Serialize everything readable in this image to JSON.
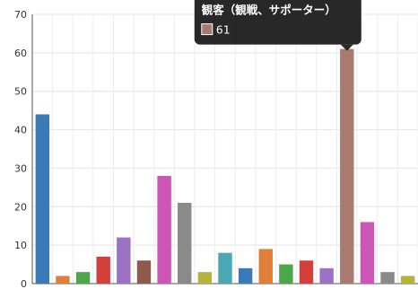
{
  "chart_data": {
    "type": "bar",
    "ylim": [
      0,
      70
    ],
    "yticks": [
      "0",
      "10",
      "20",
      "30",
      "40",
      "50",
      "60",
      "70"
    ],
    "grid": true,
    "values": [
      44,
      2,
      3,
      7,
      12,
      6,
      28,
      21,
      3,
      8,
      4,
      9,
      5,
      6,
      4,
      61,
      16,
      3,
      2
    ],
    "colors": [
      "#3a7ab8",
      "#e07f3a",
      "#4ea64a",
      "#d43f3a",
      "#9b72c2",
      "#8e5a4e",
      "#cc55b5",
      "#8a8a8a",
      "#b5b33a",
      "#4aa7b4",
      "#3a7ab8",
      "#e07f3a",
      "#4ea64a",
      "#d43f3a",
      "#9b72c2",
      "#a97a6f",
      "#cc55b5",
      "#8a8a8a",
      "#b5b33a"
    ],
    "highlight_index": 15,
    "tooltip": {
      "title": "観客（観戦、サポーター）",
      "value_label": "61",
      "swatch_color": "#a97a6f"
    }
  }
}
